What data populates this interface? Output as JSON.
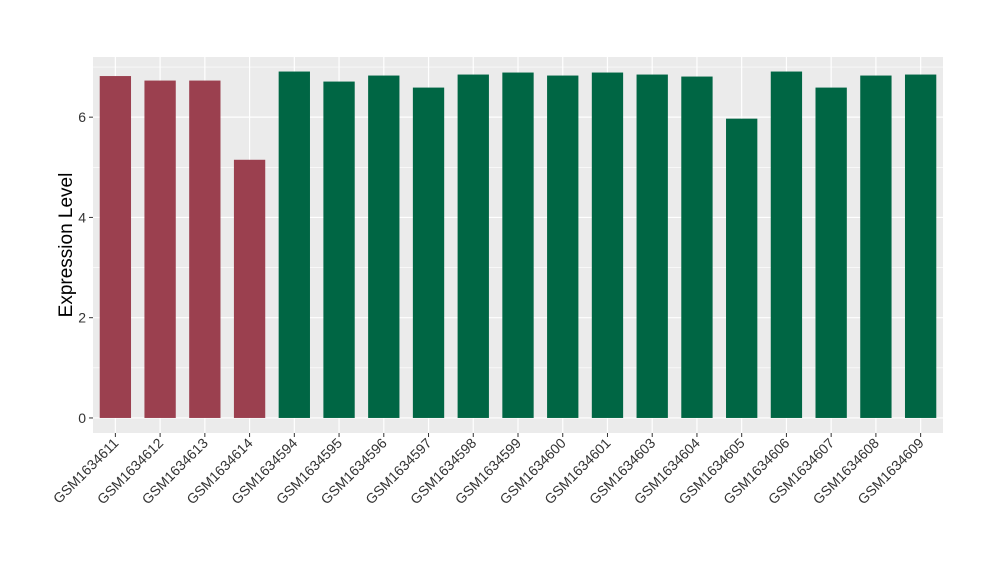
{
  "chart_data": {
    "type": "bar",
    "title": "",
    "xlabel": "",
    "ylabel": "Expression Level",
    "ylim": [
      -0.3,
      7.2
    ],
    "yticks": [
      0,
      2,
      4,
      6
    ],
    "ytick_labels": [
      "0",
      "2",
      "4",
      "6"
    ],
    "grid": true,
    "legend": "none",
    "categories": [
      "GSM1634611",
      "GSM1634612",
      "GSM1634613",
      "GSM1634614",
      "GSM1634594",
      "GSM1634595",
      "GSM1634596",
      "GSM1634597",
      "GSM1634598",
      "GSM1634599",
      "GSM1634600",
      "GSM1634601",
      "GSM1634603",
      "GSM1634604",
      "GSM1634605",
      "GSM1634606",
      "GSM1634607",
      "GSM1634608",
      "GSM1634609"
    ],
    "values": [
      6.82,
      6.73,
      6.73,
      5.15,
      6.91,
      6.71,
      6.83,
      6.59,
      6.85,
      6.89,
      6.83,
      6.89,
      6.85,
      6.81,
      5.97,
      6.91,
      6.59,
      6.83,
      6.85
    ],
    "bar_colors": [
      "#9b404f",
      "#9b404f",
      "#9b404f",
      "#9b404f",
      "#006644",
      "#006644",
      "#006644",
      "#006644",
      "#006644",
      "#006644",
      "#006644",
      "#006644",
      "#006644",
      "#006644",
      "#006644",
      "#006644",
      "#006644",
      "#006644",
      "#006644"
    ],
    "panel_color": "#ebebeb",
    "grid_color": "#ffffff"
  }
}
